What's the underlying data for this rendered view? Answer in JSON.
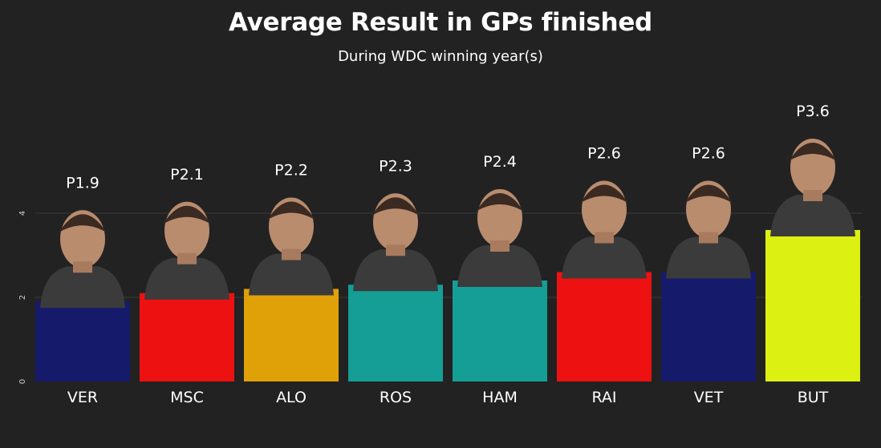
{
  "chart_data": {
    "type": "bar",
    "title": "Average Result in GPs finished",
    "subtitle": "During WDC winning year(s)",
    "categories": [
      "VER",
      "MSC",
      "ALO",
      "ROS",
      "HAM",
      "RAI",
      "VET",
      "BUT"
    ],
    "values": [
      1.9,
      2.1,
      2.2,
      2.3,
      2.4,
      2.6,
      2.6,
      3.6
    ],
    "data_labels": [
      "P1.9",
      "P2.1",
      "P2.2",
      "P2.3",
      "P2.4",
      "P2.6",
      "P2.6",
      "P3.6"
    ],
    "colors": [
      "#151a6b",
      "#ee1111",
      "#e0a008",
      "#159e96",
      "#159e96",
      "#ee1111",
      "#151a6b",
      "#dcf011"
    ],
    "yticks": [
      0,
      2,
      4
    ],
    "ylim": [
      0,
      4.15
    ],
    "grid": true,
    "legend": "none",
    "xlabel": "",
    "ylabel": ""
  },
  "colors": {
    "background": "#222222",
    "grid": "#3a3a3a",
    "text": "#ffffff",
    "axis_text": "#cfcfcf"
  }
}
